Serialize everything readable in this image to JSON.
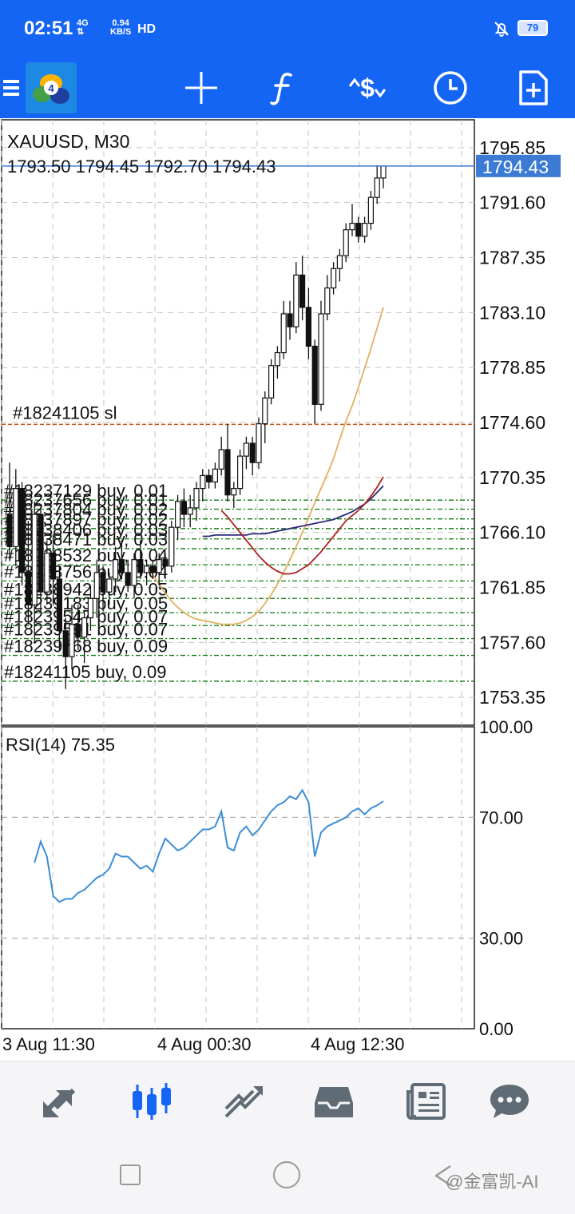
{
  "status_bar": {
    "time": "02:51",
    "network": "4G",
    "speed_value": "0.94",
    "speed_unit": "KB/S",
    "hd": "HD",
    "battery": "79",
    "icons": [
      "4g-signal-icon",
      "bell-off-icon",
      "battery-icon"
    ]
  },
  "toolbar": {
    "items": [
      {
        "name": "menu-icon"
      },
      {
        "name": "app-logo"
      },
      {
        "name": "crosshair-icon"
      },
      {
        "name": "indicators-icon"
      },
      {
        "name": "symbols-icon"
      },
      {
        "name": "timeframe-icon"
      },
      {
        "name": "new-order-icon"
      }
    ],
    "color": "#1565f5"
  },
  "chart_data": [
    {
      "type": "candlestick",
      "title": "XAUUSD, M30",
      "ohlc": "1793.50 1794.45 1792.70 1794.43",
      "current_price": "1794.43",
      "y_ticks": [
        "1795.85",
        "1791.60",
        "1787.35",
        "1783.10",
        "1778.85",
        "1774.60",
        "1770.35",
        "1766.10",
        "1761.85",
        "1757.60",
        "1753.35"
      ],
      "ylim": [
        1751.2,
        1798.0
      ],
      "x_ticks": [
        "3 Aug 11:30",
        "4 Aug 00:30",
        "4 Aug 12:30"
      ],
      "sl_label": "#18241105 sl",
      "sl_price": 1774.45,
      "buy_orders": [
        {
          "label": "#18237129 buy, 0.01",
          "price": 1768.6
        },
        {
          "label": "#18237656 buy, 0.01",
          "price": 1767.9
        },
        {
          "label": "#18237804 buy, 0.02",
          "price": 1767.15
        },
        {
          "label": "#18237897 buy, 0.02",
          "price": 1766.4
        },
        {
          "label": "#18238406 buy, 0.03",
          "price": 1765.6
        },
        {
          "label": "#18238471 buy, 0.03",
          "price": 1764.85
        },
        {
          "label": "#18238532 buy, 0.04",
          "price": 1763.6
        },
        {
          "label": "#18238756 buy, 0.04",
          "price": 1762.35
        },
        {
          "label": "#18238942 buy, 0.05",
          "price": 1761.0
        },
        {
          "label": "#18239183 buy, 0.05",
          "price": 1759.9
        },
        {
          "label": "#18239547 buy, 0.07",
          "price": 1758.9
        },
        {
          "label": "#18239591 buy, 0.07",
          "price": 1757.9
        },
        {
          "label": "#18239768 buy, 0.09",
          "price": 1756.6
        },
        {
          "label": "#18241105 buy, 0.09",
          "price": 1754.6
        }
      ],
      "candles": [
        [
          1767.5,
          1771.5,
          1764.0,
          1765.0
        ],
        [
          1765.0,
          1771.0,
          1763.5,
          1769.5
        ],
        [
          1769.5,
          1770.0,
          1762.0,
          1763.0
        ],
        [
          1763.0,
          1767.0,
          1759.0,
          1760.5
        ],
        [
          1760.5,
          1768.5,
          1757.5,
          1767.5
        ],
        [
          1767.5,
          1768.0,
          1760.0,
          1761.5
        ],
        [
          1761.5,
          1765.5,
          1760.5,
          1764.5
        ],
        [
          1764.5,
          1766.0,
          1760.5,
          1762.5
        ],
        [
          1762.5,
          1763.5,
          1757.0,
          1758.5
        ],
        [
          1758.5,
          1759.5,
          1754.0,
          1756.5
        ],
        [
          1756.5,
          1760.5,
          1755.5,
          1759.0
        ],
        [
          1759.0,
          1760.5,
          1757.0,
          1758.0
        ],
        [
          1758.0,
          1760.0,
          1756.0,
          1759.5
        ],
        [
          1759.5,
          1762.0,
          1758.5,
          1761.0
        ],
        [
          1761.0,
          1764.0,
          1759.5,
          1763.0
        ],
        [
          1763.0,
          1763.5,
          1760.0,
          1761.5
        ],
        [
          1761.5,
          1763.0,
          1760.5,
          1762.5
        ],
        [
          1762.5,
          1765.0,
          1761.5,
          1764.0
        ],
        [
          1764.0,
          1765.5,
          1762.5,
          1763.0
        ],
        [
          1763.0,
          1764.0,
          1761.5,
          1762.0
        ],
        [
          1762.0,
          1764.5,
          1761.0,
          1764.0
        ],
        [
          1764.0,
          1765.5,
          1762.5,
          1763.0
        ],
        [
          1763.0,
          1764.0,
          1762.0,
          1763.5
        ],
        [
          1763.5,
          1764.0,
          1762.5,
          1763.0
        ],
        [
          1763.0,
          1764.5,
          1762.0,
          1764.0
        ],
        [
          1764.0,
          1764.5,
          1762.5,
          1763.5
        ],
        [
          1763.5,
          1767.0,
          1763.0,
          1766.5
        ],
        [
          1766.5,
          1769.0,
          1765.5,
          1768.5
        ],
        [
          1768.5,
          1769.5,
          1766.5,
          1767.5
        ],
        [
          1767.5,
          1769.0,
          1766.5,
          1768.0
        ],
        [
          1768.0,
          1770.0,
          1767.0,
          1769.5
        ],
        [
          1769.5,
          1771.0,
          1768.5,
          1770.5
        ],
        [
          1770.5,
          1771.0,
          1769.5,
          1770.0
        ],
        [
          1770.0,
          1771.5,
          1769.5,
          1771.0
        ],
        [
          1771.0,
          1773.5,
          1770.5,
          1772.5
        ],
        [
          1772.5,
          1774.5,
          1768.5,
          1769.0
        ],
        [
          1769.0,
          1770.0,
          1768.0,
          1769.5
        ],
        [
          1769.5,
          1772.5,
          1769.0,
          1772.0
        ],
        [
          1772.0,
          1773.5,
          1771.0,
          1773.0
        ],
        [
          1773.0,
          1773.5,
          1770.5,
          1771.5
        ],
        [
          1771.5,
          1775.0,
          1771.0,
          1774.5
        ],
        [
          1774.5,
          1777.0,
          1773.0,
          1776.5
        ],
        [
          1776.5,
          1779.5,
          1776.0,
          1779.0
        ],
        [
          1779.0,
          1780.5,
          1778.0,
          1780.0
        ],
        [
          1780.0,
          1784.0,
          1779.5,
          1783.0
        ],
        [
          1783.0,
          1784.0,
          1781.0,
          1782.0
        ],
        [
          1782.0,
          1787.0,
          1781.5,
          1786.0
        ],
        [
          1786.0,
          1787.5,
          1782.5,
          1783.5
        ],
        [
          1783.5,
          1785.0,
          1779.5,
          1780.5
        ],
        [
          1780.5,
          1781.0,
          1774.5,
          1776.0
        ],
        [
          1776.0,
          1784.0,
          1775.5,
          1783.0
        ],
        [
          1783.0,
          1786.0,
          1782.5,
          1785.0
        ],
        [
          1785.0,
          1787.0,
          1784.5,
          1786.5
        ],
        [
          1786.5,
          1788.0,
          1785.5,
          1787.5
        ],
        [
          1787.5,
          1790.0,
          1787.0,
          1789.5
        ],
        [
          1789.5,
          1791.5,
          1789.0,
          1790.0
        ],
        [
          1790.0,
          1790.5,
          1788.5,
          1789.0
        ],
        [
          1789.0,
          1790.5,
          1788.5,
          1790.0
        ],
        [
          1790.0,
          1792.5,
          1789.5,
          1792.0
        ],
        [
          1792.0,
          1794.5,
          1791.5,
          1793.5
        ],
        [
          1793.5,
          1794.45,
          1792.7,
          1794.43
        ]
      ],
      "ma_lines": [
        {
          "color": "#e0b060",
          "values": [
            1763.5,
            1762.8,
            1762.1,
            1761.4,
            1760.8,
            1760.3,
            1759.9,
            1759.6,
            1759.4,
            1759.3,
            1759.2,
            1759.1,
            1759.0,
            1759.0,
            1759.0,
            1759.1,
            1759.3,
            1759.6,
            1760.0,
            1760.6,
            1761.3,
            1762.1,
            1763.0,
            1764.0,
            1765.0,
            1766.1,
            1767.2,
            1768.4,
            1769.5,
            1770.6,
            1771.8,
            1773.3,
            1774.7,
            1775.9,
            1777.3,
            1778.8,
            1780.3,
            1781.9,
            1783.5
          ]
        },
        {
          "color": "#2a2a7a",
          "values": [
            1765.8,
            1765.8,
            1765.9,
            1765.9,
            1765.9,
            1765.9,
            1765.9,
            1765.9,
            1766.0,
            1766.0,
            1766.0,
            1766.1,
            1766.2,
            1766.3,
            1766.4,
            1766.5,
            1766.6,
            1766.7,
            1766.8,
            1766.9,
            1767.0,
            1767.1,
            1767.3,
            1767.5,
            1767.7,
            1768.0,
            1768.3,
            1768.7,
            1769.2,
            1769.7
          ]
        },
        {
          "color": "#b02020",
          "values": [
            1767.8,
            1767.3,
            1766.7,
            1766.1,
            1765.5,
            1764.9,
            1764.3,
            1763.8,
            1763.4,
            1763.1,
            1762.9,
            1762.9,
            1763.0,
            1763.3,
            1763.6,
            1764.1,
            1764.6,
            1765.2,
            1765.8,
            1766.4,
            1767.0,
            1767.4,
            1767.8,
            1768.3,
            1768.9,
            1769.6,
            1770.4
          ]
        }
      ]
    },
    {
      "type": "line",
      "title": "RSI(14) 75.35",
      "y_ticks": [
        "100.00",
        "70.00",
        "30.00",
        "0.00"
      ],
      "ylim": [
        0,
        100
      ],
      "levels": [
        70,
        30
      ],
      "values": [
        55,
        62,
        57,
        44,
        42,
        43,
        43,
        45,
        46,
        48,
        50,
        51,
        53,
        58,
        57,
        57,
        55,
        53,
        54,
        52,
        58,
        63,
        61,
        59,
        60,
        62,
        64,
        66,
        66,
        67,
        72,
        60,
        59,
        65,
        67,
        64,
        66,
        69,
        72,
        74,
        75,
        77,
        76,
        79,
        75,
        57,
        65,
        67,
        68,
        69,
        70,
        72,
        73,
        71,
        73,
        74,
        75.35
      ]
    }
  ],
  "bottom_nav": {
    "items": [
      {
        "name": "quotes-icon",
        "active": false
      },
      {
        "name": "chart-icon",
        "active": true
      },
      {
        "name": "trade-icon",
        "active": false
      },
      {
        "name": "history-icon",
        "active": false
      },
      {
        "name": "news-icon",
        "active": false
      },
      {
        "name": "chat-icon",
        "active": false
      }
    ],
    "active_color": "#1565f5",
    "color": "#5f6b75"
  },
  "watermark": "@金富凯-AI"
}
